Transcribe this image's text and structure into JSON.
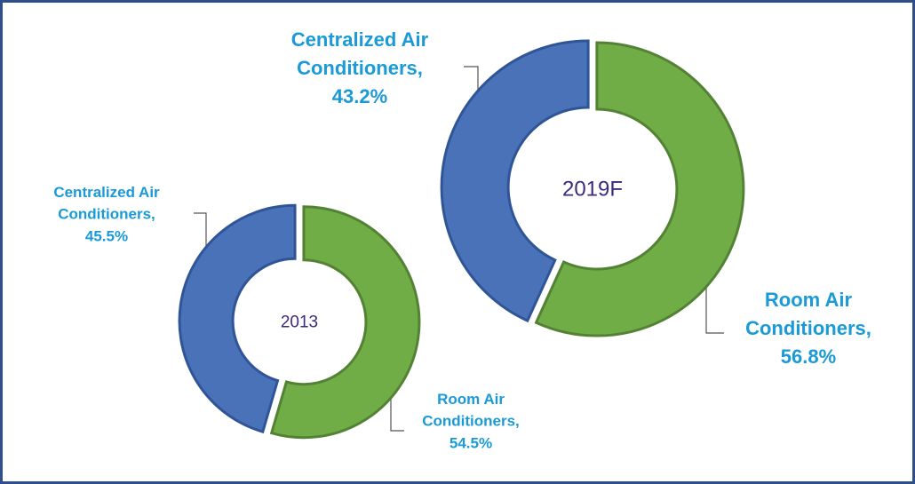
{
  "chart_data": [
    {
      "type": "donut",
      "title": "2013",
      "categories": [
        "Room Air Conditioners,",
        "Centralized Air Conditioners,"
      ],
      "values": [
        54.5,
        45.5
      ],
      "value_labels": [
        "54.5%",
        "45.5%"
      ],
      "colors": [
        "#70ad47",
        "#4a72b8"
      ]
    },
    {
      "type": "donut",
      "title": "2019F",
      "categories": [
        "Room Air Conditioners,",
        "Centralized Air Conditioners,"
      ],
      "values": [
        56.8,
        43.2
      ],
      "value_labels": [
        "56.8%",
        "43.2%"
      ],
      "colors": [
        "#70ad47",
        "#4a72b8"
      ]
    }
  ]
}
